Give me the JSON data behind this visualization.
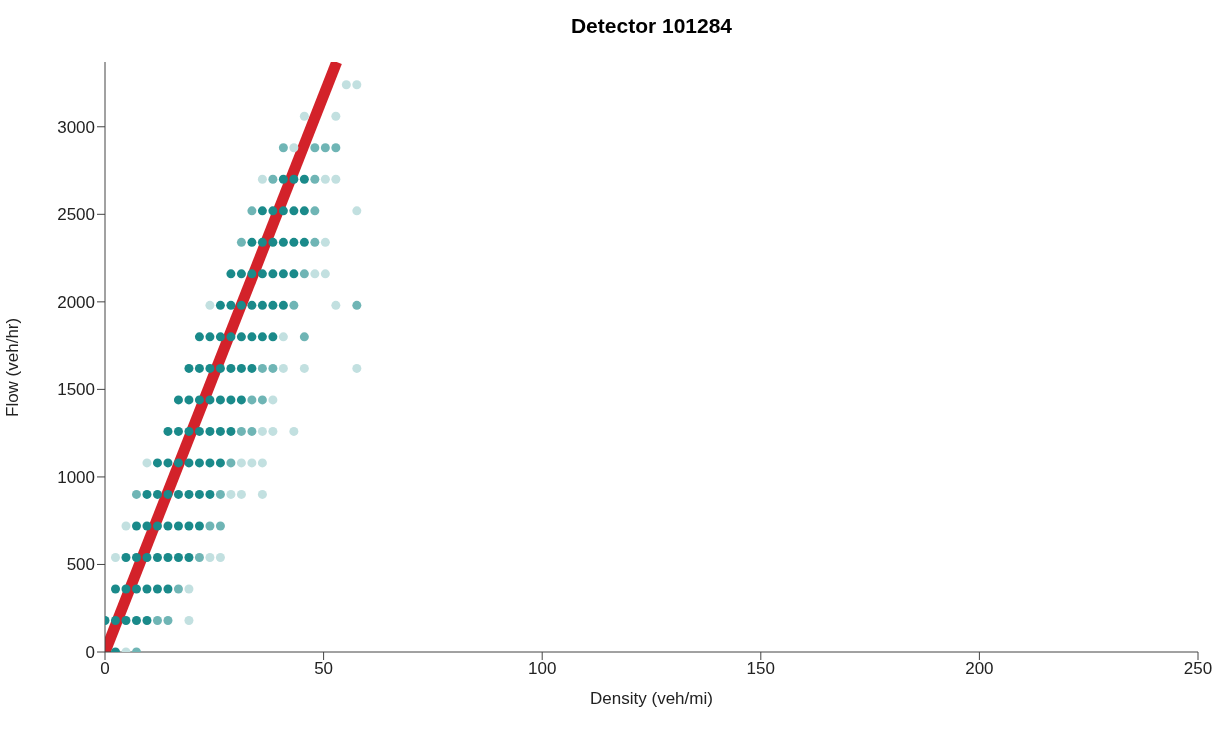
{
  "chart_data": {
    "type": "scatter",
    "title": "Detector 101284",
    "xlabel": "Density (veh/mi)",
    "ylabel": "Flow (veh/hr)",
    "xlim": [
      0,
      250
    ],
    "ylim": [
      0,
      3370
    ],
    "xticks": [
      0,
      50,
      100,
      150,
      200,
      250
    ],
    "yticks": [
      0,
      500,
      1000,
      1500,
      2000,
      2500,
      3000
    ],
    "marker": "circle",
    "series": [
      {
        "color": "#1a8a8a",
        "x": [
          2.4,
          0,
          2.4,
          4.8,
          7.2,
          9.6,
          2.4,
          4.8,
          7.2,
          9.6,
          12,
          14.4,
          4.8,
          7.2,
          9.6,
          12,
          14.4,
          16.8,
          19.2,
          7.2,
          9.6,
          12,
          14.4,
          16.8,
          19.2,
          21.6,
          9.6,
          12,
          14.4,
          16.8,
          19.2,
          21.6,
          24,
          12,
          14.4,
          16.8,
          19.2,
          21.6,
          24,
          26.4,
          14.4,
          16.8,
          19.2,
          21.6,
          24,
          26.4,
          28.8,
          16.8,
          19.2,
          21.6,
          24,
          26.4,
          28.8,
          31.2,
          19.2,
          21.6,
          24,
          26.4,
          28.8,
          31.2,
          33.6,
          21.6,
          24,
          26.4,
          28.8,
          31.2,
          33.6,
          36,
          38.4,
          26.4,
          28.8,
          31.2,
          33.6,
          36,
          38.4,
          40.8,
          28.8,
          31.2,
          33.6,
          36,
          38.4,
          40.8,
          43.2,
          33.6,
          36,
          38.4,
          40.8,
          43.2,
          45.6,
          36,
          38.4,
          40.8,
          43.2,
          45.6,
          40.8,
          43.2,
          45.6
        ],
        "values": [
          0,
          180,
          180,
          180,
          180,
          180,
          360,
          360,
          360,
          360,
          360,
          360,
          540,
          540,
          540,
          540,
          540,
          540,
          540,
          720,
          720,
          720,
          720,
          720,
          720,
          720,
          900,
          900,
          900,
          900,
          900,
          900,
          900,
          1080,
          1080,
          1080,
          1080,
          1080,
          1080,
          1080,
          1260,
          1260,
          1260,
          1260,
          1260,
          1260,
          1260,
          1440,
          1440,
          1440,
          1440,
          1440,
          1440,
          1440,
          1620,
          1620,
          1620,
          1620,
          1620,
          1620,
          1620,
          1800,
          1800,
          1800,
          1800,
          1800,
          1800,
          1800,
          1800,
          1980,
          1980,
          1980,
          1980,
          1980,
          1980,
          1980,
          2160,
          2160,
          2160,
          2160,
          2160,
          2160,
          2160,
          2340,
          2340,
          2340,
          2340,
          2340,
          2340,
          2520,
          2520,
          2520,
          2520,
          2520,
          2700,
          2700,
          2700
        ]
      },
      {
        "color": "#6fb5b5",
        "x": [
          7.2,
          12,
          14.4,
          16.8,
          21.6,
          24,
          26.4,
          7.2,
          26.4,
          28.8,
          31.2,
          33.6,
          33.6,
          36,
          36,
          38.4,
          45.6,
          43.2,
          57.6,
          45.6,
          31.2,
          48,
          33.6,
          48,
          38.4,
          48,
          40.8,
          48,
          50.4,
          52.8
        ],
        "values": [
          0,
          180,
          180,
          360,
          540,
          720,
          720,
          900,
          900,
          1080,
          1260,
          1260,
          1440,
          1440,
          1620,
          1620,
          1800,
          1980,
          1980,
          2160,
          2340,
          2340,
          2520,
          2520,
          2700,
          2700,
          2880,
          2880,
          2880,
          2880
        ]
      },
      {
        "color": "#c2e0e0",
        "x": [
          4.8,
          19.2,
          19.2,
          2.4,
          24,
          26.4,
          4.8,
          28.8,
          31.2,
          36,
          9.6,
          31.2,
          33.6,
          36,
          36,
          38.4,
          43.2,
          38.4,
          40.8,
          45.6,
          57.6,
          40.8,
          24,
          52.8,
          48,
          50.4,
          50.4,
          57.6,
          36,
          50.4,
          52.8,
          43.2,
          45.6,
          52.8,
          55.2,
          57.6
        ],
        "values": [
          0,
          180,
          360,
          540,
          540,
          540,
          720,
          900,
          900,
          900,
          1080,
          1080,
          1080,
          1080,
          1260,
          1260,
          1260,
          1440,
          1620,
          1620,
          1620,
          1800,
          1980,
          1980,
          2160,
          2160,
          2340,
          2520,
          2700,
          2700,
          2700,
          2880,
          3060,
          3060,
          3240,
          3240
        ]
      },
      {
        "type": "line",
        "color": "#d3222a",
        "marker": "none",
        "x": [
          0,
          53
        ],
        "values": [
          0,
          3370
        ]
      }
    ]
  }
}
